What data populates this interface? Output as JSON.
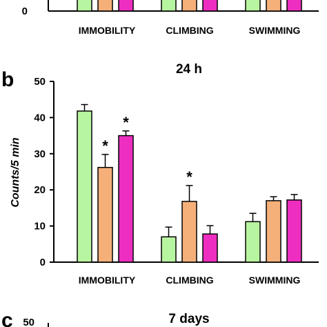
{
  "chart_data": [
    {
      "type": "bar",
      "panel": "a",
      "categories": [
        "IMMOBILITY",
        "CLIMBING",
        "SWIMMING"
      ],
      "ylim": [
        0,
        50
      ],
      "yticks": [
        0
      ],
      "colors": [
        "#b8f5a0",
        "#f5b07a",
        "#ee2ec0"
      ]
    },
    {
      "type": "bar",
      "panel": "b",
      "title": "24 h",
      "ylabel": "Counts/5 min",
      "categories": [
        "IMMOBILITY",
        "CLIMBING",
        "SWIMMING"
      ],
      "ylim": [
        0,
        50
      ],
      "yticks": [
        0,
        10,
        20,
        30,
        40,
        50
      ],
      "series": [
        {
          "values": [
            41.8,
            7.0,
            11.2
          ],
          "errors": [
            1.8,
            2.7,
            2.3
          ],
          "color": "#b8f5a0"
        },
        {
          "values": [
            26.2,
            16.8,
            17.0
          ],
          "errors": [
            3.6,
            4.4,
            1.1
          ],
          "color": "#f5b07a"
        },
        {
          "values": [
            35.0,
            7.8,
            17.2
          ],
          "errors": [
            1.3,
            2.3,
            1.5
          ],
          "color": "#ee2ec0"
        }
      ],
      "annotations": [
        {
          "text": "*",
          "series": 1,
          "category": 0
        },
        {
          "text": "*",
          "series": 2,
          "category": 0
        },
        {
          "text": "*",
          "series": 1,
          "category": 1
        }
      ]
    },
    {
      "type": "bar",
      "panel": "c",
      "title": "7 days",
      "ylim": [
        0,
        50
      ],
      "yticks": [
        50
      ]
    }
  ]
}
